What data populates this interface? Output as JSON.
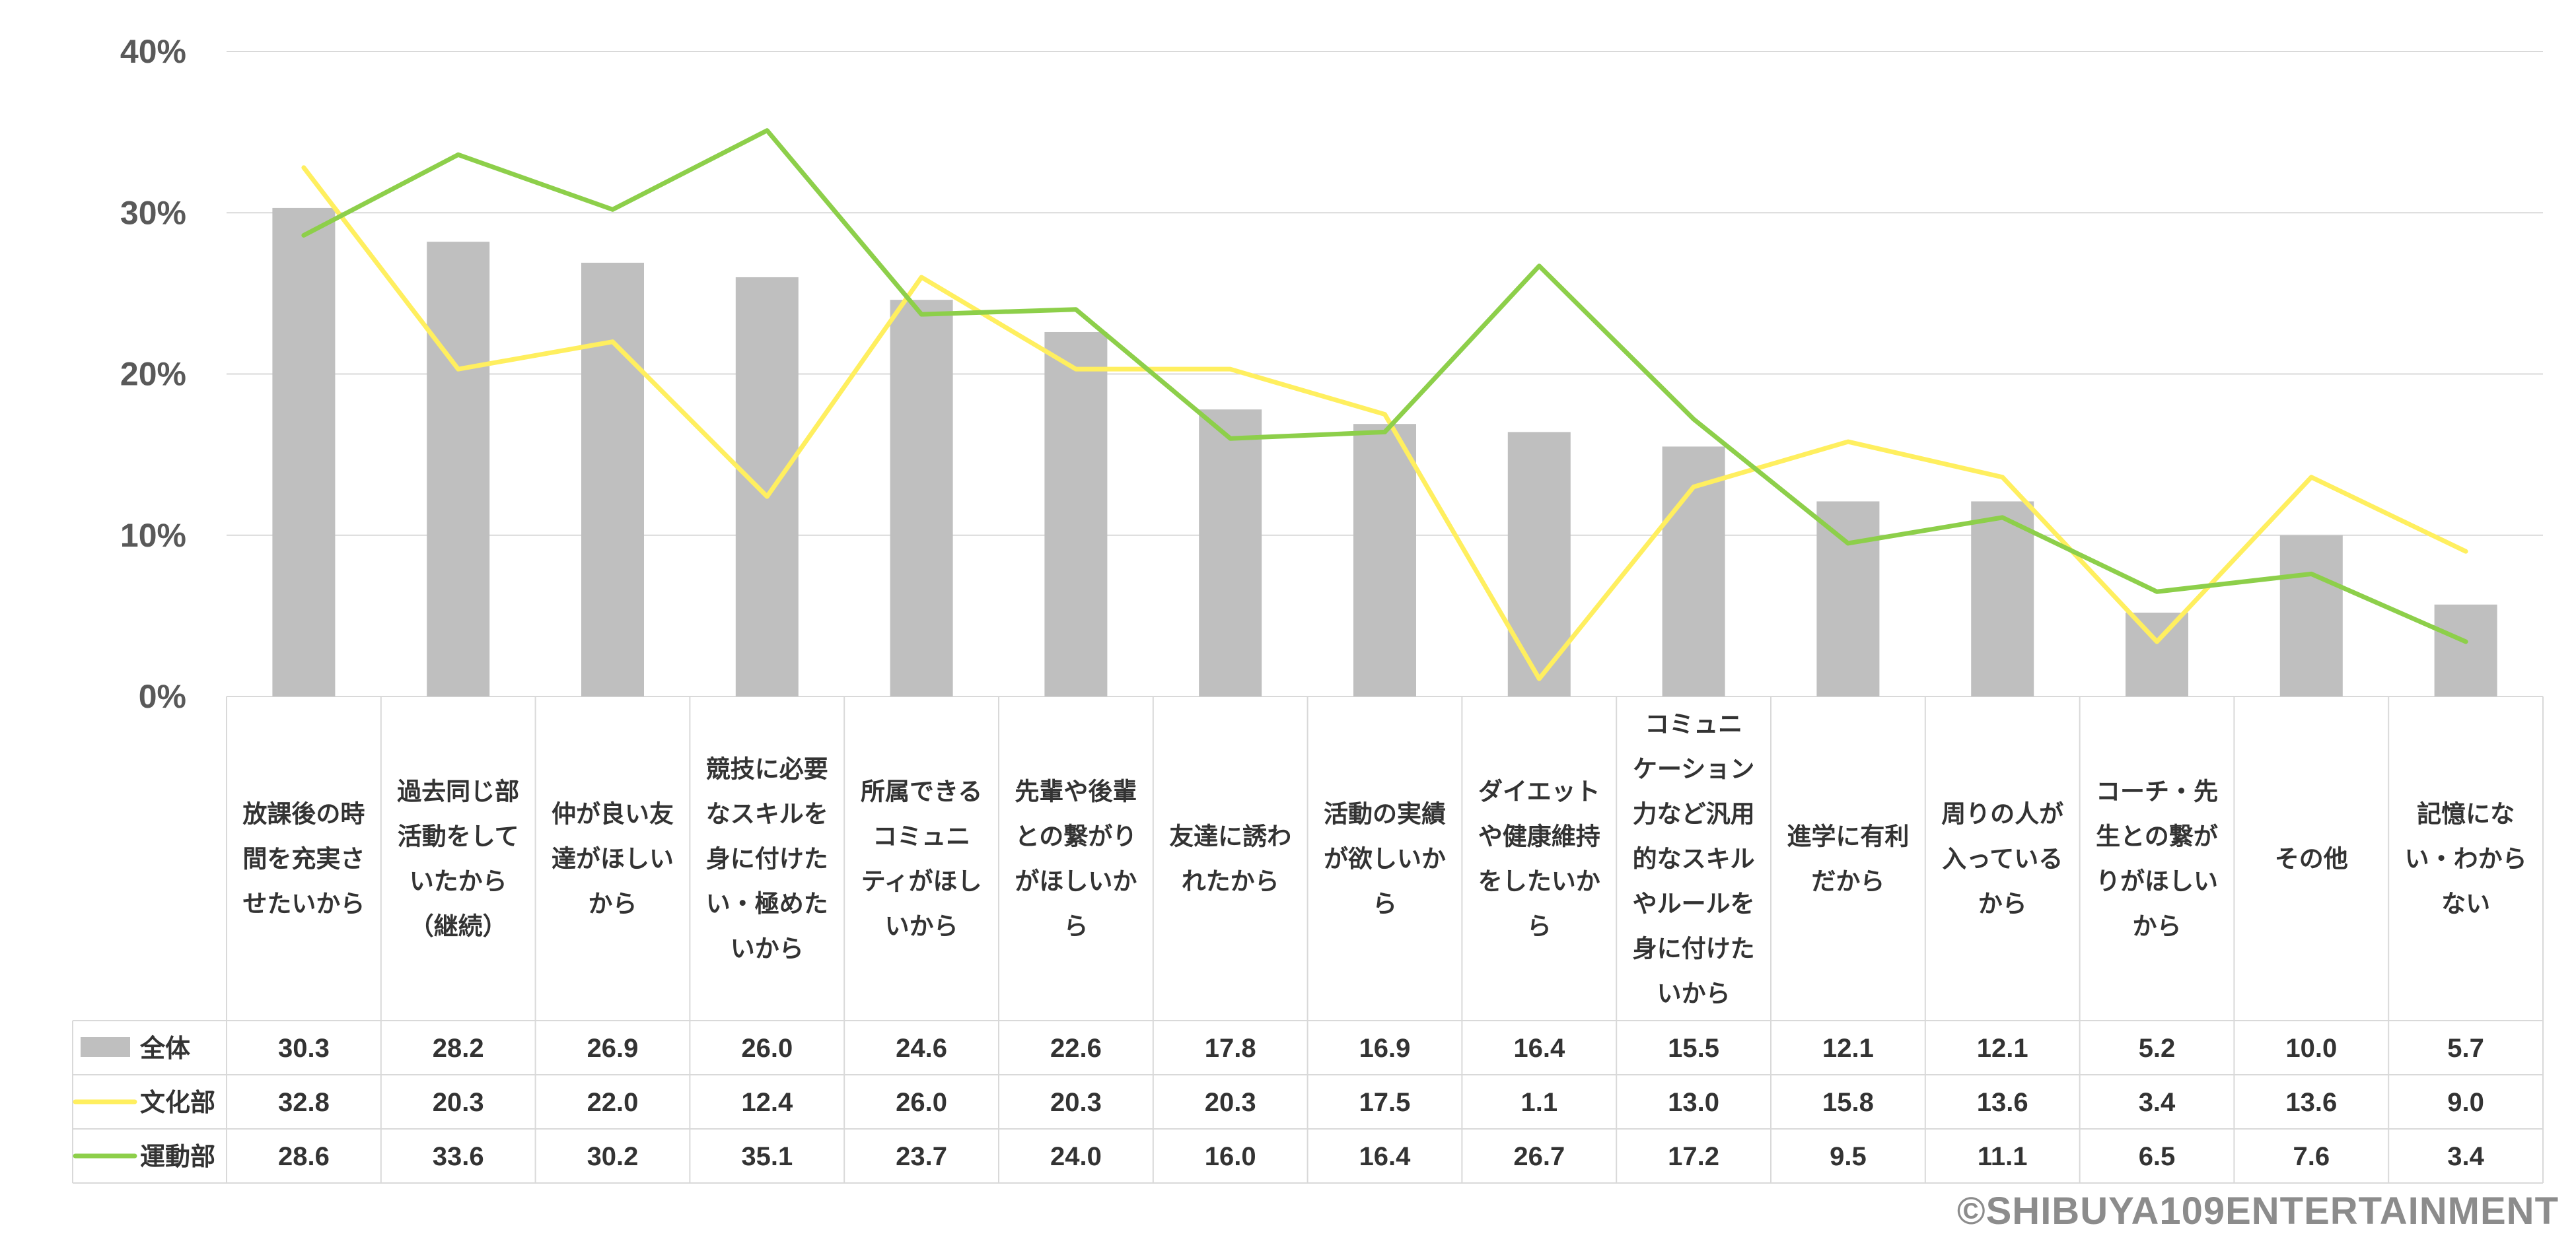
{
  "chart_data": {
    "type": "bar",
    "title": "",
    "categories": [
      "放課後の時間を充実させたいから",
      "過去同じ部活動をしていたから（継続）",
      "仲が良い友達がほしいから",
      "競技に必要なスキルを身に付けたい・極めたいから",
      "所属できるコミュニティがほしいから",
      "先輩や後輩との繋がりがほしいから",
      "友達に誘われたから",
      "活動の実績が欲しいから",
      "ダイエットや健康維持をしたいから",
      "コミュニケーション力など汎用的なスキルやルールを身に付けたいから",
      "進学に有利だから",
      "周りの人が入っているから",
      "コーチ・先生との繋がりがほしいから",
      "その他",
      "記憶にない・わからない"
    ],
    "category_lines": [
      [
        "放課後の時",
        "間を充実さ",
        "せたいから"
      ],
      [
        "過去同じ部",
        "活動をして",
        "いたから",
        "（継続）"
      ],
      [
        "仲が良い友",
        "達がほしい",
        "から"
      ],
      [
        "競技に必要",
        "なスキルを",
        "身に付けた",
        "い・極めた",
        "いから"
      ],
      [
        "所属できる",
        "コミュニ",
        "ティがほし",
        "いから"
      ],
      [
        "先輩や後輩",
        "との繋がり",
        "がほしいか",
        "ら"
      ],
      [
        "友達に誘わ",
        "れたから"
      ],
      [
        "活動の実績",
        "が欲しいか",
        "ら"
      ],
      [
        "ダイエット",
        "や健康維持",
        "をしたいか",
        "ら"
      ],
      [
        "コミュニ",
        "ケーション",
        "力など汎用",
        "的なスキル",
        "やルールを",
        "身に付けた",
        "いから"
      ],
      [
        "進学に有利",
        "だから"
      ],
      [
        "周りの人が",
        "入っている",
        "から"
      ],
      [
        "コーチ・先",
        "生との繋が",
        "りがほしい",
        "から"
      ],
      [
        "その他"
      ],
      [
        "記憶にな",
        "い・わから",
        "ない"
      ]
    ],
    "series": [
      {
        "name": "全体",
        "kind": "bar",
        "color": "#bfbfbf",
        "values": [
          30.3,
          28.2,
          26.9,
          26.0,
          24.6,
          22.6,
          17.8,
          16.9,
          16.4,
          15.5,
          12.1,
          12.1,
          5.2,
          10.0,
          5.7
        ],
        "labels": [
          "30.3",
          "28.2",
          "26.9",
          "26.0",
          "24.6",
          "22.6",
          "17.8",
          "16.9",
          "16.4",
          "15.5",
          "12.1",
          "12.1",
          "5.2",
          "10.0",
          "5.7"
        ]
      },
      {
        "name": "文化部",
        "kind": "line",
        "color": "#ffef5f",
        "values": [
          32.8,
          20.3,
          22.0,
          12.4,
          26.0,
          20.3,
          20.3,
          17.5,
          1.1,
          13.0,
          15.8,
          13.6,
          3.4,
          13.6,
          9.0
        ],
        "labels": [
          "32.8",
          "20.3",
          "22.0",
          "12.4",
          "26.0",
          "20.3",
          "20.3",
          "17.5",
          "1.1",
          "13.0",
          "15.8",
          "13.6",
          "3.4",
          "13.6",
          "9.0"
        ]
      },
      {
        "name": "運動部",
        "kind": "line",
        "color": "#8dcf4a",
        "values": [
          28.6,
          33.6,
          30.2,
          35.1,
          23.7,
          24.0,
          16.0,
          16.4,
          26.7,
          17.2,
          9.5,
          11.1,
          6.5,
          7.6,
          3.4
        ],
        "labels": [
          "28.6",
          "33.6",
          "30.2",
          "35.1",
          "23.7",
          "24.0",
          "16.0",
          "16.4",
          "26.7",
          "17.2",
          "9.5",
          "11.1",
          "6.5",
          "7.6",
          "3.4"
        ]
      }
    ],
    "ylim": [
      0,
      40
    ],
    "yticks": [
      "0%",
      "10%",
      "20%",
      "30%",
      "40%"
    ],
    "grid": true,
    "legend": "data-table-left"
  },
  "copyright": "©SHIBUYA109ENTERTAINMENT"
}
